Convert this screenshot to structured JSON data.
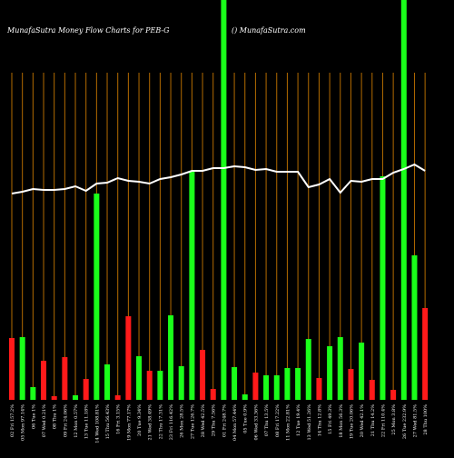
{
  "chart_data": {
    "type": "bar",
    "title": "MunafaSutra  Money Flow  Charts for PEB-G",
    "subtitle": "() MunafaSutra.com",
    "categories": [
      "02 Fri 157.2%",
      "05 Mon 97.14%",
      "06 Tue 1%",
      "07 Wed 0.21%",
      "08 Thu 1%",
      "09 Fri 24.06%",
      "12 Mon 0.57%",
      "13 Tue 11.18%",
      "14 Wed 108.81%",
      "15 Thu 56.43%",
      "16 Fri 3.15%",
      "19 Mon 77.17%",
      "20 Tue 9.34%",
      "21 Wed 38.49%",
      "22 Thu 17.31%",
      "23 Fri 116.42%",
      "26 Mon 28.5%",
      "27 Tue 126.7%",
      "28 Wed 42.5%",
      "29 Thu 7.56%",
      "01 Fri 248.7%",
      "04 Mon 57.44%",
      "05 Tue 0.9%",
      "06 Wed 33.36%",
      "07 Thu 13.5%",
      "08 Fri 17.22%",
      "11 Mon 22.81%",
      "12 Tue 19.4%",
      "13 Wed 51.26%",
      "14 Thu 12.8%",
      "15 Fri 49.3%",
      "18 Mon 56.3%",
      "19 Tue 20.06%",
      "20 Wed 42.1%",
      "21 Thu 14.2%",
      "22 Fri 110.4%",
      "25 Mon 3.8%",
      "26 Tue 232.9%",
      "27 Wed 81.5%",
      "28 Thu 100%"
    ],
    "bar_values": [
      68,
      69,
      14,
      43,
      4,
      47,
      5,
      23,
      227,
      39,
      5,
      92,
      48,
      32,
      32,
      93,
      37,
      252,
      55,
      12,
      440,
      36,
      6,
      30,
      27,
      27,
      35,
      35,
      67,
      24,
      59,
      69,
      34,
      63,
      22,
      246,
      11,
      440,
      159,
      101
    ],
    "bar_colors": [
      "#ff1a1a",
      "#1aff1a",
      "#1aff1a",
      "#ff1a1a",
      "#ff1a1a",
      "#ff1a1a",
      "#1aff1a",
      "#ff1a1a",
      "#1aff1a",
      "#1aff1a",
      "#ff1a1a",
      "#ff1a1a",
      "#1aff1a",
      "#ff1a1a",
      "#1aff1a",
      "#1aff1a",
      "#1aff1a",
      "#1aff1a",
      "#ff1a1a",
      "#ff1a1a",
      "#1aff1a",
      "#1aff1a",
      "#1aff1a",
      "#ff1a1a",
      "#1aff1a",
      "#1aff1a",
      "#1aff1a",
      "#1aff1a",
      "#1aff1a",
      "#ff1a1a",
      "#1aff1a",
      "#1aff1a",
      "#ff1a1a",
      "#1aff1a",
      "#ff1a1a",
      "#1aff1a",
      "#ff1a1a",
      "#1aff1a",
      "#1aff1a",
      "#ff1a1a"
    ],
    "line_values": [
      227,
      229,
      232,
      231,
      231,
      232,
      235,
      230,
      238,
      239,
      244,
      241,
      240,
      238,
      243,
      245,
      248,
      252,
      252,
      255,
      255,
      257,
      256,
      253,
      254,
      251,
      251,
      251,
      234,
      237,
      243,
      228,
      241,
      240,
      243,
      243,
      250,
      254,
      259,
      252
    ],
    "line_color": "#ffffff",
    "grid_color": "#b36b00",
    "ylim": [
      0,
      440
    ]
  }
}
